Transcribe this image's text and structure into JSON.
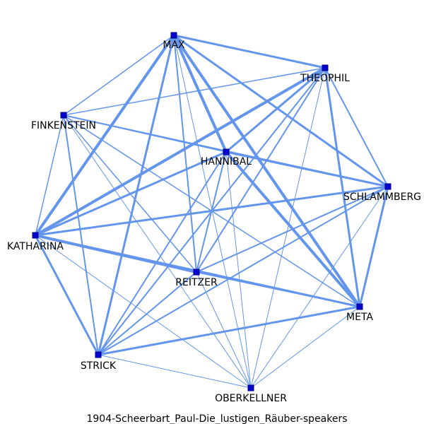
{
  "title": "1904-Scheerbart_Paul-Die_lustigen_Räuber-speakers",
  "colors": {
    "edge": "#6495ED",
    "node_fill": "#0000CD",
    "node_stroke": "#00008B",
    "label": "#000000"
  },
  "nodes": [
    {
      "id": "MAX",
      "label": "MAX"
    },
    {
      "id": "THEOPHIL",
      "label": "THEOPHIL"
    },
    {
      "id": "FINKENSTEIN",
      "label": "FINKENSTEIN"
    },
    {
      "id": "HANNIBAL",
      "label": "HANNIBAL"
    },
    {
      "id": "SCHLAMMBERG",
      "label": "SCHLAMMBERG"
    },
    {
      "id": "KATHARINA",
      "label": "KATHARINA"
    },
    {
      "id": "REITZER",
      "label": "REITZER"
    },
    {
      "id": "META",
      "label": "META"
    },
    {
      "id": "STRICK",
      "label": "STRICK"
    },
    {
      "id": "OBERKELLNER",
      "label": "OBERKELLNER"
    }
  ],
  "edges": [
    {
      "source": "MAX",
      "target": "THEOPHIL",
      "weight": 3
    },
    {
      "source": "MAX",
      "target": "FINKENSTEIN",
      "weight": 1.5
    },
    {
      "source": "MAX",
      "target": "HANNIBAL",
      "weight": 4
    },
    {
      "source": "MAX",
      "target": "SCHLAMMBERG",
      "weight": 3
    },
    {
      "source": "MAX",
      "target": "KATHARINA",
      "weight": 4
    },
    {
      "source": "MAX",
      "target": "REITZER",
      "weight": 2
    },
    {
      "source": "MAX",
      "target": "META",
      "weight": 4
    },
    {
      "source": "MAX",
      "target": "STRICK",
      "weight": 3
    },
    {
      "source": "MAX",
      "target": "OBERKELLNER",
      "weight": 1
    },
    {
      "source": "THEOPHIL",
      "target": "FINKENSTEIN",
      "weight": 1.5
    },
    {
      "source": "THEOPHIL",
      "target": "HANNIBAL",
      "weight": 3
    },
    {
      "source": "THEOPHIL",
      "target": "SCHLAMMBERG",
      "weight": 2
    },
    {
      "source": "THEOPHIL",
      "target": "KATHARINA",
      "weight": 4
    },
    {
      "source": "THEOPHIL",
      "target": "REITZER",
      "weight": 2
    },
    {
      "source": "THEOPHIL",
      "target": "META",
      "weight": 3
    },
    {
      "source": "THEOPHIL",
      "target": "STRICK",
      "weight": 2
    },
    {
      "source": "THEOPHIL",
      "target": "OBERKELLNER",
      "weight": 1
    },
    {
      "source": "FINKENSTEIN",
      "target": "HANNIBAL",
      "weight": 1.5
    },
    {
      "source": "FINKENSTEIN",
      "target": "SCHLAMMBERG",
      "weight": 2
    },
    {
      "source": "FINKENSTEIN",
      "target": "KATHARINA",
      "weight": 1.5
    },
    {
      "source": "FINKENSTEIN",
      "target": "REITZER",
      "weight": 1.5
    },
    {
      "source": "FINKENSTEIN",
      "target": "META",
      "weight": 1.5
    },
    {
      "source": "FINKENSTEIN",
      "target": "STRICK",
      "weight": 2
    },
    {
      "source": "FINKENSTEIN",
      "target": "OBERKELLNER",
      "weight": 1
    },
    {
      "source": "HANNIBAL",
      "target": "SCHLAMMBERG",
      "weight": 3
    },
    {
      "source": "HANNIBAL",
      "target": "KATHARINA",
      "weight": 3
    },
    {
      "source": "HANNIBAL",
      "target": "REITZER",
      "weight": 2
    },
    {
      "source": "HANNIBAL",
      "target": "META",
      "weight": 4
    },
    {
      "source": "HANNIBAL",
      "target": "STRICK",
      "weight": 2
    },
    {
      "source": "HANNIBAL",
      "target": "OBERKELLNER",
      "weight": 1
    },
    {
      "source": "SCHLAMMBERG",
      "target": "KATHARINA",
      "weight": 3
    },
    {
      "source": "SCHLAMMBERG",
      "target": "REITZER",
      "weight": 2
    },
    {
      "source": "SCHLAMMBERG",
      "target": "META",
      "weight": 3
    },
    {
      "source": "SCHLAMMBERG",
      "target": "STRICK",
      "weight": 2
    },
    {
      "source": "SCHLAMMBERG",
      "target": "OBERKELLNER",
      "weight": 1
    },
    {
      "source": "KATHARINA",
      "target": "REITZER",
      "weight": 4
    },
    {
      "source": "KATHARINA",
      "target": "META",
      "weight": 3
    },
    {
      "source": "KATHARINA",
      "target": "STRICK",
      "weight": 3
    },
    {
      "source": "KATHARINA",
      "target": "OBERKELLNER",
      "weight": 1
    },
    {
      "source": "REITZER",
      "target": "META",
      "weight": 2
    },
    {
      "source": "REITZER",
      "target": "STRICK",
      "weight": 2
    },
    {
      "source": "REITZER",
      "target": "OBERKELLNER",
      "weight": 1
    },
    {
      "source": "META",
      "target": "STRICK",
      "weight": 3
    },
    {
      "source": "META",
      "target": "OBERKELLNER",
      "weight": 1
    },
    {
      "source": "STRICK",
      "target": "OBERKELLNER",
      "weight": 1
    }
  ]
}
